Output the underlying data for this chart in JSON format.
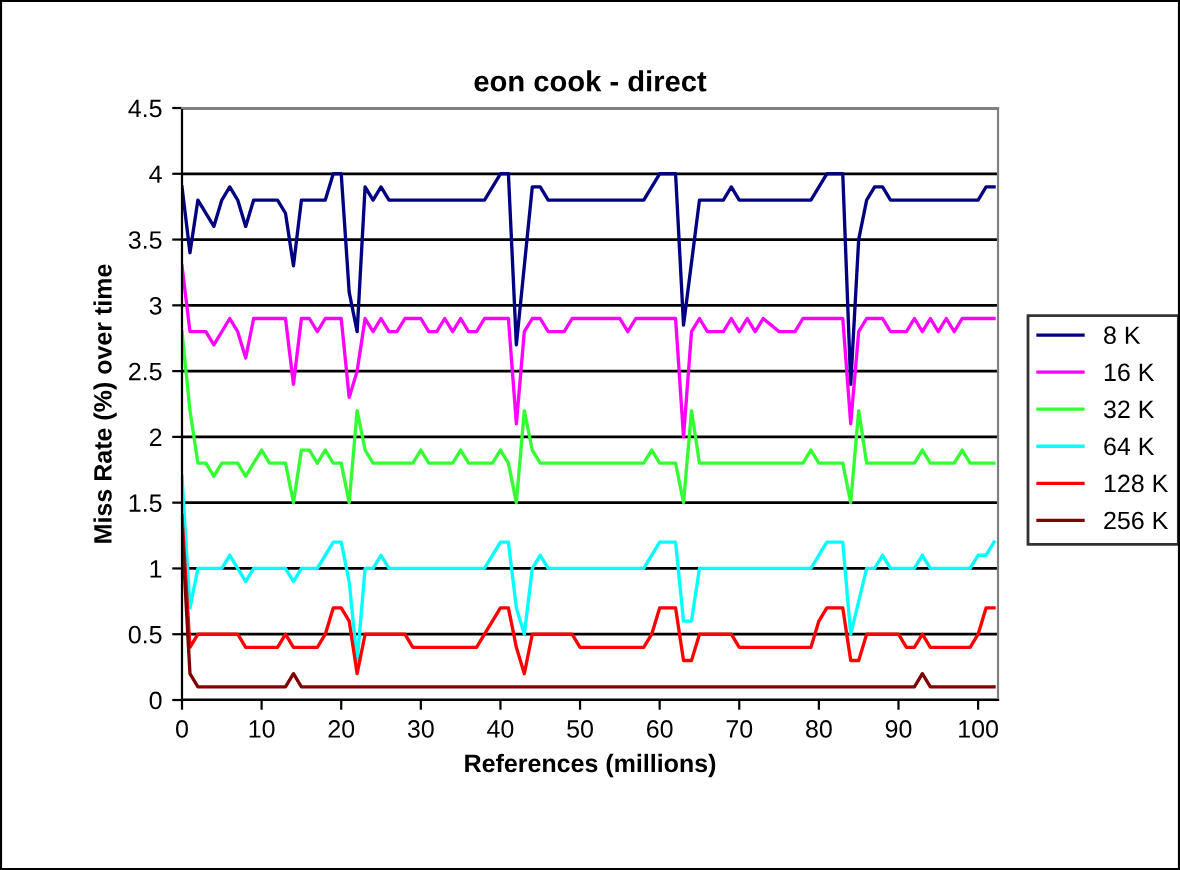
{
  "chart_data": {
    "type": "line",
    "title": "eon cook - direct",
    "xlabel": "References (millions)",
    "ylabel": "Miss Rate (%) over time",
    "xlim": [
      0,
      102.5
    ],
    "xticks": [
      0,
      10,
      20,
      30,
      40,
      50,
      60,
      70,
      80,
      90,
      100
    ],
    "ylim": [
      0,
      4.5
    ],
    "yticks": [
      0,
      0.5,
      1,
      1.5,
      2,
      2.5,
      3,
      3.5,
      4,
      4.5
    ],
    "grid": "y",
    "legend": "right",
    "marker": "none",
    "line_style": "solid",
    "series": [
      {
        "name": "8 K",
        "color": "#000080",
        "x": [
          0,
          1,
          2,
          4,
          5,
          6,
          7,
          8,
          9,
          12,
          13,
          14,
          15,
          18,
          19,
          20,
          21,
          22,
          23,
          24,
          25,
          26,
          38,
          40,
          41,
          42,
          44,
          45,
          46,
          58,
          60,
          62,
          63,
          65,
          68,
          69,
          70,
          79,
          81,
          83,
          84,
          85,
          86,
          87,
          88,
          89,
          100,
          101,
          102
        ],
        "values": [
          3.9,
          3.4,
          3.8,
          3.6,
          3.8,
          3.9,
          3.8,
          3.6,
          3.8,
          3.8,
          3.7,
          3.3,
          3.8,
          3.8,
          4.0,
          4.0,
          3.1,
          2.8,
          3.9,
          3.8,
          3.9,
          3.8,
          3.8,
          4.0,
          4.0,
          2.7,
          3.9,
          3.9,
          3.8,
          3.8,
          4.0,
          4.0,
          2.85,
          3.8,
          3.8,
          3.9,
          3.8,
          3.8,
          4.0,
          4.0,
          2.4,
          3.5,
          3.8,
          3.9,
          3.9,
          3.8,
          3.8,
          3.9,
          3.9
        ]
      },
      {
        "name": "16 K",
        "color": "#ff00ff",
        "x": [
          0,
          1,
          3,
          4,
          6,
          7,
          8,
          9,
          13,
          14,
          15,
          16,
          17,
          18,
          20,
          21,
          22,
          23,
          24,
          25,
          26,
          27,
          28,
          30,
          31,
          32,
          33,
          34,
          35,
          36,
          37,
          38,
          41,
          42,
          43,
          44,
          45,
          46,
          48,
          49,
          55,
          56,
          57,
          62,
          63,
          64,
          65,
          66,
          68,
          69,
          70,
          71,
          72,
          73,
          75,
          77,
          78,
          83,
          84,
          85,
          86,
          88,
          89,
          91,
          92,
          93,
          94,
          95,
          96,
          97,
          98,
          100,
          102
        ],
        "values": [
          3.3,
          2.8,
          2.8,
          2.7,
          2.9,
          2.8,
          2.6,
          2.9,
          2.9,
          2.4,
          2.9,
          2.9,
          2.8,
          2.9,
          2.9,
          2.3,
          2.5,
          2.9,
          2.8,
          2.9,
          2.8,
          2.8,
          2.9,
          2.9,
          2.8,
          2.8,
          2.9,
          2.8,
          2.9,
          2.8,
          2.8,
          2.9,
          2.9,
          2.1,
          2.8,
          2.9,
          2.9,
          2.8,
          2.8,
          2.9,
          2.9,
          2.8,
          2.9,
          2.9,
          2.0,
          2.8,
          2.9,
          2.8,
          2.8,
          2.9,
          2.8,
          2.9,
          2.8,
          2.9,
          2.8,
          2.8,
          2.9,
          2.9,
          2.1,
          2.8,
          2.9,
          2.9,
          2.8,
          2.8,
          2.9,
          2.8,
          2.9,
          2.8,
          2.9,
          2.8,
          2.9,
          2.9,
          2.9
        ]
      },
      {
        "name": "32 K",
        "color": "#33ff33",
        "x": [
          0,
          1,
          2,
          3,
          4,
          5,
          7,
          8,
          9,
          10,
          11,
          13,
          14,
          15,
          16,
          17,
          18,
          19,
          20,
          21,
          22,
          23,
          24,
          29,
          30,
          31,
          34,
          35,
          36,
          39,
          40,
          41,
          42,
          43,
          44,
          45,
          58,
          59,
          60,
          62,
          63,
          64,
          65,
          78,
          79,
          80,
          83,
          84,
          85,
          86,
          92,
          93,
          94,
          97,
          98,
          99,
          102
        ],
        "values": [
          2.8,
          2.2,
          1.8,
          1.8,
          1.7,
          1.8,
          1.8,
          1.7,
          1.8,
          1.9,
          1.8,
          1.8,
          1.5,
          1.9,
          1.9,
          1.8,
          1.9,
          1.8,
          1.8,
          1.5,
          2.2,
          1.9,
          1.8,
          1.8,
          1.9,
          1.8,
          1.8,
          1.9,
          1.8,
          1.8,
          1.9,
          1.8,
          1.5,
          2.2,
          1.9,
          1.8,
          1.8,
          1.9,
          1.8,
          1.8,
          1.5,
          2.2,
          1.8,
          1.8,
          1.9,
          1.8,
          1.8,
          1.5,
          2.2,
          1.8,
          1.8,
          1.9,
          1.8,
          1.8,
          1.9,
          1.8,
          1.8
        ]
      },
      {
        "name": "64 K",
        "color": "#00ffff",
        "x": [
          0,
          1,
          2,
          5,
          6,
          7,
          8,
          9,
          13,
          14,
          15,
          17,
          18,
          19,
          20,
          21,
          22,
          23,
          24,
          25,
          26,
          38,
          40,
          41,
          42,
          43,
          44,
          45,
          46,
          58,
          60,
          62,
          63,
          64,
          65,
          79,
          81,
          83,
          84,
          86,
          87,
          88,
          89,
          92,
          93,
          94,
          99,
          100,
          101,
          102
        ],
        "values": [
          1.7,
          0.7,
          1.0,
          1.0,
          1.1,
          1.0,
          0.9,
          1.0,
          1.0,
          0.9,
          1.0,
          1.0,
          1.1,
          1.2,
          1.2,
          0.9,
          0.3,
          1.0,
          1.0,
          1.1,
          1.0,
          1.0,
          1.2,
          1.2,
          0.7,
          0.5,
          1.0,
          1.1,
          1.0,
          1.0,
          1.2,
          1.2,
          0.6,
          0.6,
          1.0,
          1.0,
          1.2,
          1.2,
          0.5,
          1.0,
          1.0,
          1.1,
          1.0,
          1.0,
          1.1,
          1.0,
          1.0,
          1.1,
          1.1,
          1.2
        ]
      },
      {
        "name": "128 K",
        "color": "#ff0000",
        "x": [
          0,
          1,
          2,
          7,
          8,
          12,
          13,
          14,
          17,
          18,
          19,
          20,
          21,
          22,
          23,
          28,
          29,
          37,
          38,
          40,
          41,
          42,
          43,
          44,
          49,
          50,
          58,
          59,
          60,
          62,
          63,
          64,
          65,
          69,
          70,
          79,
          80,
          81,
          83,
          84,
          85,
          86,
          90,
          91,
          92,
          93,
          94,
          99,
          100,
          101,
          102
        ],
        "values": [
          1.4,
          0.4,
          0.5,
          0.5,
          0.4,
          0.4,
          0.5,
          0.4,
          0.4,
          0.5,
          0.7,
          0.7,
          0.6,
          0.2,
          0.5,
          0.5,
          0.4,
          0.4,
          0.5,
          0.7,
          0.7,
          0.4,
          0.2,
          0.5,
          0.5,
          0.4,
          0.4,
          0.5,
          0.7,
          0.7,
          0.3,
          0.3,
          0.5,
          0.5,
          0.4,
          0.4,
          0.6,
          0.7,
          0.7,
          0.3,
          0.3,
          0.5,
          0.5,
          0.4,
          0.4,
          0.5,
          0.4,
          0.4,
          0.5,
          0.7,
          0.7
        ]
      },
      {
        "name": "256 K",
        "color": "#800000",
        "x": [
          0,
          1,
          2,
          13,
          14,
          15,
          92,
          93,
          94,
          102
        ],
        "values": [
          1.3,
          0.2,
          0.1,
          0.1,
          0.2,
          0.1,
          0.1,
          0.2,
          0.1,
          0.1
        ]
      }
    ]
  }
}
